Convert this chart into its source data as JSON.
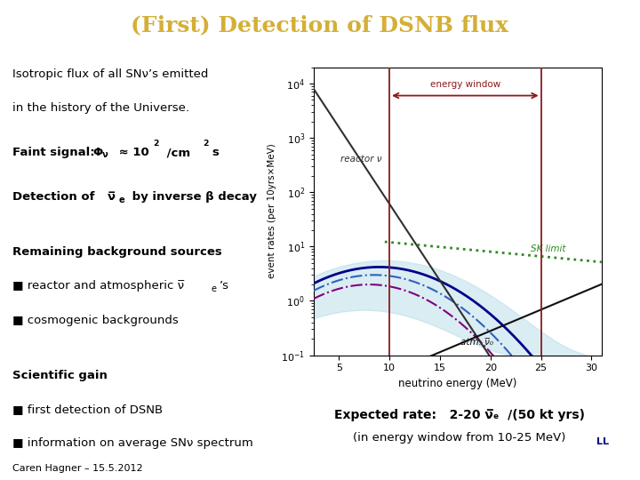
{
  "title": "(First) Detection of DSNB flux",
  "title_color": "#D4AF37",
  "title_bg_color": "#2E4A6B",
  "slide_bg_color": "#FFFFFF",
  "footer_text": "Caren Hagner – 15.5.2012",
  "expected_box_bg": "#C8DCF0",
  "xlabel": "neutrino energy (MeV)",
  "ylabel": "event rates (per 10yrs×MeV)",
  "xlim": [
    2.5,
    31
  ],
  "ylim_log_min": -1,
  "ylim_log_max": 4,
  "xticks": [
    5,
    10,
    15,
    20,
    25,
    30
  ],
  "energy_window_color": "#8B1A1A",
  "reactor_color": "#303030",
  "atm_color": "#101010",
  "sk_color": "#2E8B22",
  "ll_color": "#00008B",
  "krj_color": "#3060C0",
  "tbp_color": "#800080",
  "band_color": "#ADD8E6",
  "band_alpha": 0.45
}
